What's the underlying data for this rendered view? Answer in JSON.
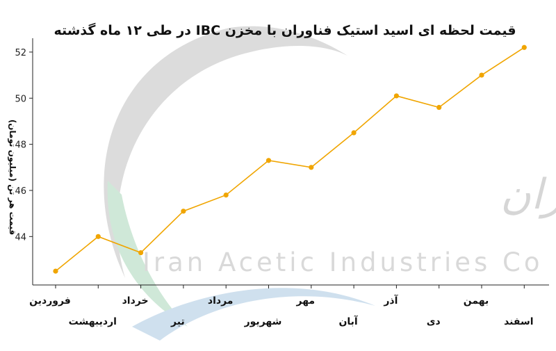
{
  "colors": {
    "line": "#f0a500",
    "axis": "#222222",
    "watermark": "#d6d6d6"
  },
  "watermark": {
    "english": "Iran Acetic Industries Co",
    "persian": "شرکت صنایع استیک ایران"
  },
  "chart_data": {
    "type": "line",
    "title": "قیمت لحظه ای اسید استیک فناوران با مخزن IBC  در طی ۱۲ ماه گذشته",
    "xlabel": "",
    "ylabel": "قیمت هر تن (میلیون تومان)",
    "categories": [
      "فروردین",
      "اردیبهشت",
      "خرداد",
      "تیر",
      "مرداد",
      "شهریور",
      "مهر",
      "آبان",
      "آذر",
      "دی",
      "بهمن",
      "اسفند"
    ],
    "series": [
      {
        "values": [
          42.5,
          44.0,
          43.3,
          45.1,
          45.8,
          47.3,
          47.0,
          48.5,
          50.1,
          49.6,
          51.0,
          52.2
        ]
      }
    ],
    "ylim": [
      41.9,
      52.6
    ],
    "yticks": [
      44,
      46,
      48,
      50,
      52
    ],
    "grid": false,
    "legend": "none"
  }
}
